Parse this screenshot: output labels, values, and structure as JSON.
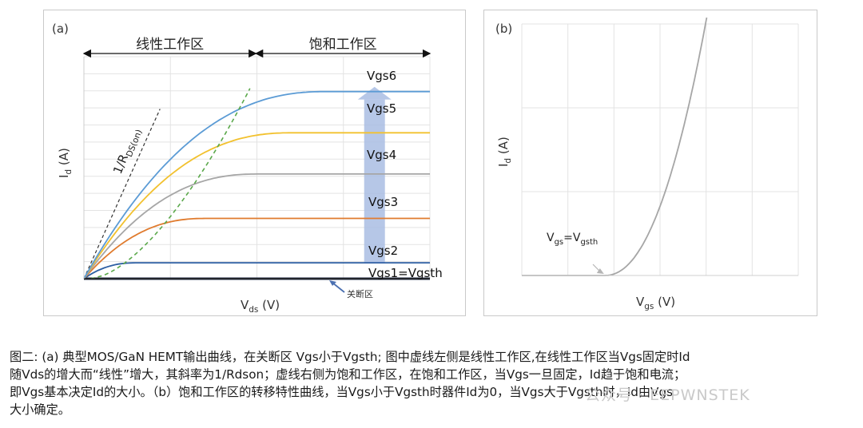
{
  "chart_data": [
    {
      "id": "a",
      "type": "line",
      "panel_label": "(a)",
      "xlabel_main": "V",
      "xlabel_sub": "ds",
      "xlabel_unit": " (V)",
      "ylabel_main": "I",
      "ylabel_sub": "d",
      "ylabel_unit": " (A)",
      "xlim": [
        0,
        10
      ],
      "ylim": [
        0,
        7
      ],
      "grid": true,
      "region_linear_label": "线性工作区",
      "region_saturation_label": "饱和工作区",
      "cutoff_label": "关断区",
      "slope_label_main": "1/R",
      "slope_label_sub": "DS(on)",
      "arrow_color": "#a9bde3",
      "series": [
        {
          "name": "Vgs1=Vgsth",
          "color": "#1f2a44",
          "sat": 0.0,
          "vsat": 0.5
        },
        {
          "name": "Vgs2",
          "color": "#2e5fa3",
          "sat": 0.5,
          "vsat": 1.5
        },
        {
          "name": "Vgs3",
          "color": "#e07b2e",
          "sat": 1.9,
          "vsat": 3.5
        },
        {
          "name": "Vgs4",
          "color": "#a6a6a6",
          "sat": 3.3,
          "vsat": 5.0
        },
        {
          "name": "Vgs5",
          "color": "#f2c12e",
          "sat": 4.6,
          "vsat": 6.0
        },
        {
          "name": "Vgs6",
          "color": "#5b9bd5",
          "sat": 5.9,
          "vsat": 7.0
        }
      ],
      "boundary_color": "#5aa84a",
      "tangent_color": "#333333"
    },
    {
      "id": "b",
      "type": "line",
      "panel_label": "(b)",
      "xlabel_main": "V",
      "xlabel_sub": "gs",
      "xlabel_unit": " (V)",
      "ylabel_main": "I",
      "ylabel_sub": "d",
      "ylabel_unit": " (A)",
      "xlim": [
        0,
        10
      ],
      "ylim": [
        0,
        10
      ],
      "grid": true,
      "threshold_x": 3.0,
      "threshold_label": "Vgs=Vgsth",
      "threshold_label_parts": [
        "V",
        "gs",
        "=V",
        "gsth"
      ],
      "curve_color": "#a6a6a6"
    }
  ],
  "caption": {
    "lines": [
      "图二: (a) 典型MOS/GaN HEMT输出曲线，在关断区 Vgs小于Vgsth; 图中虚线左侧是线性工作区,在线性工作区当Vgs固定时Id",
      "随Vds的增大而“线性”增大，其斜率为1/Rdson；虚线右侧为饱和工作区，在饱和工作区，当Vgs一旦固定，Id趋于饱和电流；",
      "即Vgs基本决定Id的大小。（b）饱和工作区的转移特性曲线，当Vgs小于Vgsth时器件Id为0，当Vgs大于Vgsth时，Id由Vgs",
      "大小确定。"
    ]
  },
  "watermark": "公众号 · EEPWNSTEK"
}
